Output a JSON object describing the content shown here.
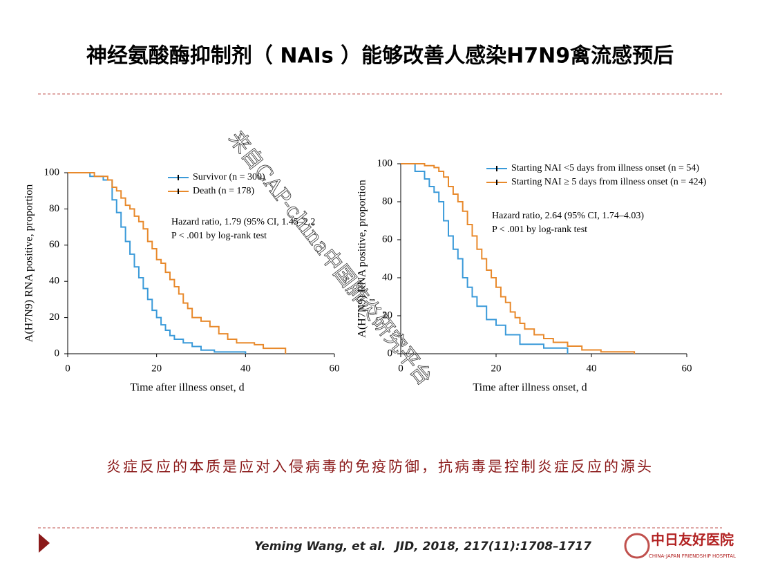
{
  "slide": {
    "title": "神经氨酸酶抑制剂（ NAIs ）能够改善人感染H7N9禽流感预后",
    "caption": "炎症反应的本质是应对入侵病毒的免疫防御，抗病毒是控制炎症反应的源头",
    "citation_authors": "Yeming Wang, et al.",
    "citation_source": "JID, 2018, 217(11):1708–1717",
    "watermark": "来自CAP-china中国肺炎研究平台",
    "logo_name": "中日友好医院",
    "logo_subtitle": "CHINA-JAPAN FRIENDSHIP HOSPITAL"
  },
  "chart_data": [
    {
      "type": "step",
      "ylabel": "A(H7N9) RNA positive, proportion",
      "xlabel": "Time after illness onset, d",
      "xlim": [
        0,
        60
      ],
      "ylim": [
        0,
        100
      ],
      "xticks": [
        0,
        20,
        40,
        60
      ],
      "yticks": [
        0,
        20,
        40,
        60,
        80,
        100
      ],
      "annotations": [
        "Hazard ratio, 1.79 (95% CI, 1.45–2.2",
        "P < .001 by log-rank test"
      ],
      "series": [
        {
          "name": "Survivor (n = 300)",
          "color": "#3a9ad9",
          "x": [
            0,
            5,
            8,
            10,
            11,
            12,
            13,
            14,
            15,
            16,
            17,
            18,
            19,
            20,
            21,
            22,
            23,
            24,
            26,
            28,
            30,
            33,
            40
          ],
          "values": [
            100,
            98,
            96,
            85,
            78,
            70,
            62,
            55,
            48,
            42,
            36,
            30,
            24,
            20,
            16,
            13,
            10,
            8,
            6,
            4,
            2,
            1,
            0
          ]
        },
        {
          "name": "Death (n = 178)",
          "color": "#e8892b",
          "x": [
            0,
            6,
            9,
            10,
            11,
            12,
            13,
            14,
            15,
            16,
            17,
            18,
            19,
            20,
            21,
            22,
            23,
            24,
            25,
            26,
            27,
            28,
            30,
            32,
            34,
            36,
            38,
            42,
            44,
            49
          ],
          "values": [
            100,
            98,
            96,
            92,
            90,
            86,
            82,
            80,
            76,
            73,
            69,
            62,
            58,
            52,
            50,
            45,
            41,
            37,
            33,
            28,
            25,
            20,
            18,
            15,
            11,
            8,
            6,
            5,
            3,
            0
          ]
        }
      ]
    },
    {
      "type": "step",
      "ylabel": "A(H7N9) RNA positive, proportion",
      "xlabel": "Time after illness onset, d",
      "xlim": [
        0,
        60
      ],
      "ylim": [
        0,
        100
      ],
      "xticks": [
        0,
        20,
        40,
        60
      ],
      "yticks": [
        0,
        20,
        40,
        60,
        80,
        100
      ],
      "annotations": [
        "Hazard ratio, 2.64 (95% CI, 1.74–4.03)",
        "P < .001 by log-rank test"
      ],
      "series": [
        {
          "name": "Starting NAI <5 days from illness onset (n = 54)",
          "color": "#3a9ad9",
          "x": [
            0,
            3,
            5,
            6,
            7,
            8,
            9,
            10,
            11,
            12,
            13,
            14,
            15,
            16,
            18,
            20,
            22,
            25,
            30,
            35
          ],
          "values": [
            100,
            96,
            92,
            88,
            85,
            80,
            70,
            62,
            55,
            50,
            40,
            35,
            30,
            25,
            18,
            15,
            10,
            5,
            3,
            0
          ]
        },
        {
          "name": "Starting NAI ≥ 5 days from illness onset (n = 424)",
          "color": "#e8892b",
          "x": [
            0,
            5,
            7,
            8,
            9,
            10,
            11,
            12,
            13,
            14,
            15,
            16,
            17,
            18,
            19,
            20,
            21,
            22,
            23,
            24,
            25,
            26,
            28,
            30,
            32,
            35,
            38,
            42,
            49
          ],
          "values": [
            100,
            99,
            98,
            96,
            93,
            88,
            84,
            80,
            75,
            68,
            62,
            55,
            50,
            44,
            40,
            35,
            30,
            27,
            22,
            19,
            16,
            13,
            10,
            8,
            6,
            4,
            2,
            1,
            0
          ]
        }
      ]
    }
  ]
}
